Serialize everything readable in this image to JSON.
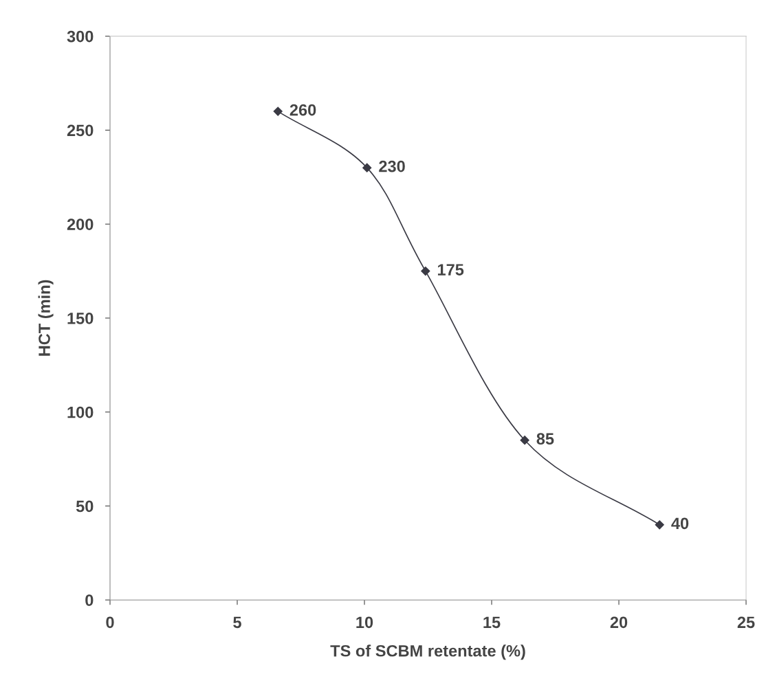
{
  "chart_data": {
    "type": "line",
    "xlabel": "TS of SCBM retentate (%)",
    "ylabel": "HCT (min)",
    "x": [
      6.6,
      10.1,
      12.4,
      16.3,
      21.6
    ],
    "series": [
      {
        "color": "#3a3a44",
        "values": [
          260,
          230,
          175,
          85,
          40
        ]
      }
    ],
    "data_labels": true,
    "marker": "diamond",
    "line_style": "solid",
    "grid": false,
    "legend": false,
    "xlim": [
      0,
      25
    ],
    "xticks": [
      0,
      5,
      10,
      15,
      20,
      25
    ],
    "ylim": [
      0,
      300
    ],
    "yticks": [
      0,
      50,
      100,
      150,
      200,
      250,
      300
    ]
  }
}
